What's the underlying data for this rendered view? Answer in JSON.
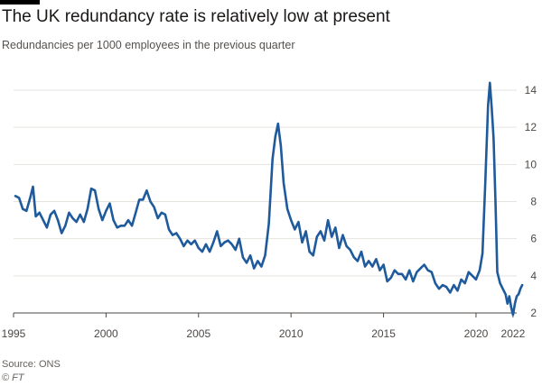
{
  "header": {
    "title": "The UK redundancy rate is relatively low at present",
    "subtitle": "Redundancies per 1000 employees in the previous quarter"
  },
  "footer": {
    "source": "Source: ONS",
    "credit": "© FT"
  },
  "colors": {
    "line": "#1e5a9c",
    "grid": "#e6e3df",
    "axis": "#4d4845"
  },
  "chart_data": {
    "type": "line",
    "title": "The UK redundancy rate is relatively low at present",
    "subtitle": "Redundancies per 1000 employees in the previous quarter",
    "xlabel": "",
    "ylabel": "",
    "y_axis_side": "right",
    "xlim": [
      1995.0,
      2022.2
    ],
    "ylim": [
      2,
      14
    ],
    "x_ticks": [
      1995,
      2000,
      2005,
      2010,
      2015,
      2020,
      2022
    ],
    "y_ticks": [
      2,
      4,
      6,
      8,
      10,
      12,
      14
    ],
    "grid": "horizontal",
    "series": [
      {
        "values": [
          [
            1995.1,
            8.3
          ],
          [
            1995.3,
            8.2
          ],
          [
            1995.5,
            7.6
          ],
          [
            1995.7,
            7.5
          ],
          [
            1995.9,
            8.2
          ],
          [
            1996.05,
            8.8
          ],
          [
            1996.2,
            7.2
          ],
          [
            1996.4,
            7.4
          ],
          [
            1996.6,
            7.0
          ],
          [
            1996.8,
            6.6
          ],
          [
            1997.0,
            7.3
          ],
          [
            1997.2,
            7.5
          ],
          [
            1997.4,
            7.0
          ],
          [
            1997.6,
            6.3
          ],
          [
            1997.8,
            6.7
          ],
          [
            1998.0,
            7.4
          ],
          [
            1998.2,
            7.1
          ],
          [
            1998.4,
            6.9
          ],
          [
            1998.6,
            7.3
          ],
          [
            1998.8,
            6.9
          ],
          [
            1999.0,
            7.6
          ],
          [
            1999.2,
            8.7
          ],
          [
            1999.4,
            8.6
          ],
          [
            1999.6,
            7.6
          ],
          [
            1999.8,
            7.0
          ],
          [
            2000.0,
            7.5
          ],
          [
            2000.2,
            7.9
          ],
          [
            2000.4,
            7.0
          ],
          [
            2000.6,
            6.6
          ],
          [
            2000.8,
            6.7
          ],
          [
            2001.0,
            6.7
          ],
          [
            2001.2,
            7.0
          ],
          [
            2001.4,
            6.7
          ],
          [
            2001.6,
            7.4
          ],
          [
            2001.8,
            8.1
          ],
          [
            2002.0,
            8.1
          ],
          [
            2002.2,
            8.6
          ],
          [
            2002.4,
            8.0
          ],
          [
            2002.6,
            7.7
          ],
          [
            2002.8,
            7.1
          ],
          [
            2003.0,
            7.4
          ],
          [
            2003.2,
            7.3
          ],
          [
            2003.4,
            6.5
          ],
          [
            2003.6,
            6.2
          ],
          [
            2003.8,
            6.3
          ],
          [
            2004.0,
            6.0
          ],
          [
            2004.2,
            5.6
          ],
          [
            2004.4,
            5.9
          ],
          [
            2004.6,
            5.7
          ],
          [
            2004.8,
            5.9
          ],
          [
            2005.0,
            5.5
          ],
          [
            2005.2,
            5.3
          ],
          [
            2005.4,
            5.7
          ],
          [
            2005.6,
            5.3
          ],
          [
            2005.8,
            5.8
          ],
          [
            2006.0,
            6.4
          ],
          [
            2006.2,
            5.6
          ],
          [
            2006.4,
            5.8
          ],
          [
            2006.6,
            5.9
          ],
          [
            2006.8,
            5.7
          ],
          [
            2007.0,
            5.4
          ],
          [
            2007.2,
            6.0
          ],
          [
            2007.4,
            5.0
          ],
          [
            2007.6,
            4.7
          ],
          [
            2007.8,
            5.1
          ],
          [
            2008.0,
            4.4
          ],
          [
            2008.2,
            4.8
          ],
          [
            2008.4,
            4.5
          ],
          [
            2008.6,
            5.1
          ],
          [
            2008.8,
            6.8
          ],
          [
            2009.0,
            10.3
          ],
          [
            2009.15,
            11.5
          ],
          [
            2009.3,
            12.2
          ],
          [
            2009.45,
            11.0
          ],
          [
            2009.6,
            9.0
          ],
          [
            2009.8,
            7.6
          ],
          [
            2010.0,
            7.0
          ],
          [
            2010.2,
            6.5
          ],
          [
            2010.4,
            6.9
          ],
          [
            2010.6,
            5.8
          ],
          [
            2010.8,
            6.4
          ],
          [
            2011.0,
            5.3
          ],
          [
            2011.2,
            5.1
          ],
          [
            2011.4,
            6.1
          ],
          [
            2011.6,
            6.4
          ],
          [
            2011.8,
            5.9
          ],
          [
            2012.0,
            7.0
          ],
          [
            2012.2,
            6.1
          ],
          [
            2012.4,
            6.6
          ],
          [
            2012.6,
            5.5
          ],
          [
            2012.8,
            6.2
          ],
          [
            2013.0,
            5.6
          ],
          [
            2013.2,
            5.4
          ],
          [
            2013.4,
            5.0
          ],
          [
            2013.6,
            4.8
          ],
          [
            2013.8,
            5.3
          ],
          [
            2014.0,
            4.5
          ],
          [
            2014.2,
            4.8
          ],
          [
            2014.4,
            4.5
          ],
          [
            2014.6,
            4.9
          ],
          [
            2014.8,
            4.3
          ],
          [
            2015.0,
            4.6
          ],
          [
            2015.2,
            3.7
          ],
          [
            2015.4,
            3.9
          ],
          [
            2015.6,
            4.3
          ],
          [
            2015.8,
            4.1
          ],
          [
            2016.0,
            4.1
          ],
          [
            2016.2,
            3.8
          ],
          [
            2016.4,
            4.3
          ],
          [
            2016.6,
            3.7
          ],
          [
            2016.8,
            4.2
          ],
          [
            2017.0,
            4.4
          ],
          [
            2017.2,
            4.6
          ],
          [
            2017.4,
            4.3
          ],
          [
            2017.6,
            4.2
          ],
          [
            2017.8,
            3.6
          ],
          [
            2018.0,
            3.3
          ],
          [
            2018.2,
            3.5
          ],
          [
            2018.4,
            3.4
          ],
          [
            2018.6,
            3.1
          ],
          [
            2018.8,
            3.5
          ],
          [
            2019.0,
            3.2
          ],
          [
            2019.2,
            3.8
          ],
          [
            2019.4,
            3.6
          ],
          [
            2019.6,
            4.2
          ],
          [
            2019.8,
            4.0
          ],
          [
            2020.0,
            3.8
          ],
          [
            2020.2,
            4.3
          ],
          [
            2020.35,
            5.2
          ],
          [
            2020.5,
            9.0
          ],
          [
            2020.65,
            13.2
          ],
          [
            2020.75,
            14.4
          ],
          [
            2020.85,
            13.0
          ],
          [
            2020.95,
            11.4
          ],
          [
            2021.05,
            8.0
          ],
          [
            2021.15,
            4.2
          ],
          [
            2021.3,
            3.6
          ],
          [
            2021.45,
            3.3
          ],
          [
            2021.6,
            3.0
          ],
          [
            2021.7,
            2.5
          ],
          [
            2021.8,
            2.9
          ],
          [
            2021.9,
            2.3
          ],
          [
            2022.0,
            1.9
          ],
          [
            2022.1,
            2.5
          ],
          [
            2022.2,
            2.9
          ],
          [
            2022.3,
            3.0
          ],
          [
            2022.4,
            3.3
          ],
          [
            2022.5,
            3.5
          ]
        ]
      }
    ]
  }
}
